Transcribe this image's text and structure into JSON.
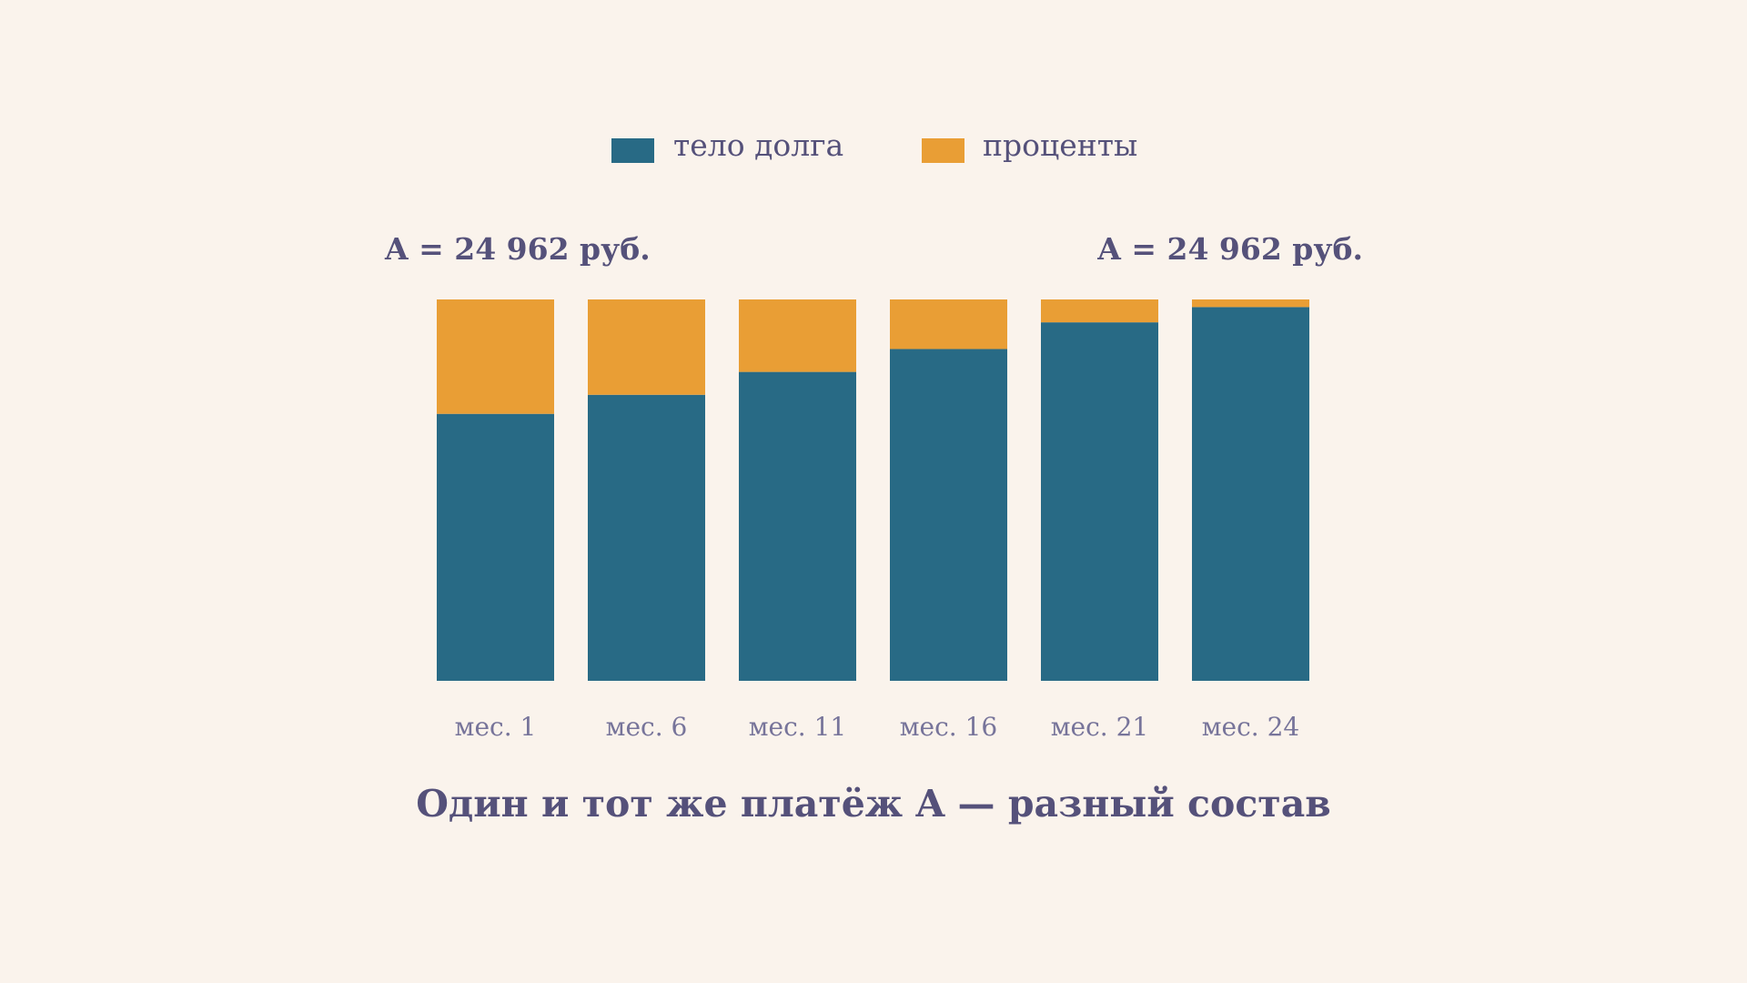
{
  "chart_data": {
    "type": "bar",
    "stacked": true,
    "normalized": true,
    "title": "Один и тот же платёж A — разный состав",
    "xlabel": "",
    "ylabel": "",
    "categories": [
      "мес. 1",
      "мес. 6",
      "мес. 11",
      "мес. 16",
      "мес. 21",
      "мес. 24"
    ],
    "series": [
      {
        "name": "тело долга",
        "color": "#286a85",
        "values": [
          0.7,
          0.75,
          0.81,
          0.87,
          0.94,
          0.98
        ]
      },
      {
        "name": "проценты",
        "color": "#e99e35",
        "values": [
          0.3,
          0.25,
          0.19,
          0.13,
          0.06,
          0.02
        ]
      }
    ],
    "ylim": [
      0,
      1
    ],
    "grid": false,
    "legend_position": "top-center",
    "annotations": [
      {
        "text": "A = 24 962 руб.",
        "anchor": "top-left"
      },
      {
        "text": "A = 24 962 руб.",
        "anchor": "top-right"
      }
    ]
  }
}
